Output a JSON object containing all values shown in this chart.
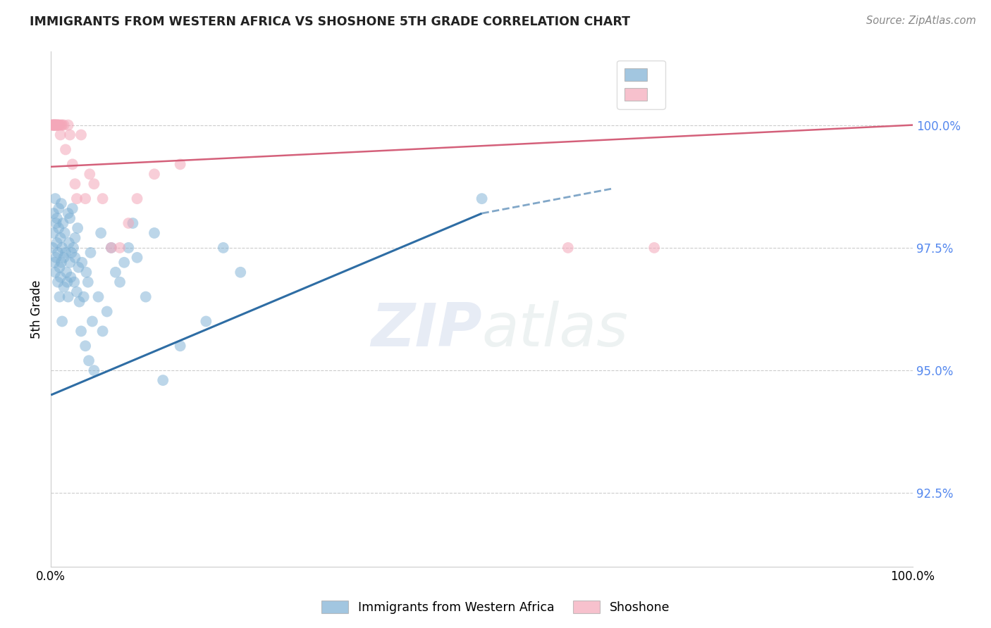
{
  "title": "IMMIGRANTS FROM WESTERN AFRICA VS SHOSHONE 5TH GRADE CORRELATION CHART",
  "source": "Source: ZipAtlas.com",
  "ylabel": "5th Grade",
  "xlim": [
    0,
    100.0
  ],
  "ylim": [
    91.0,
    101.5
  ],
  "yticks": [
    92.5,
    95.0,
    97.5,
    100.0
  ],
  "ytick_labels": [
    "92.5%",
    "95.0%",
    "97.5%",
    "100.0%"
  ],
  "xticks": [
    0.0,
    20.0,
    40.0,
    60.0,
    80.0,
    100.0
  ],
  "xtick_labels": [
    "0.0%",
    "",
    "",
    "",
    "",
    "100.0%"
  ],
  "blue_color": "#7BAFD4",
  "pink_color": "#F4A7B9",
  "trend_blue_color": "#2E6DA4",
  "trend_pink_color": "#D4607A",
  "watermark_zip": "ZIP",
  "watermark_atlas": "atlas",
  "blue_scatter_x": [
    0.2,
    0.3,
    0.3,
    0.4,
    0.5,
    0.5,
    0.6,
    0.6,
    0.7,
    0.7,
    0.8,
    0.8,
    0.9,
    0.9,
    1.0,
    1.0,
    1.1,
    1.1,
    1.2,
    1.2,
    1.3,
    1.3,
    1.4,
    1.5,
    1.5,
    1.6,
    1.7,
    1.8,
    1.9,
    2.0,
    2.0,
    2.1,
    2.2,
    2.2,
    2.3,
    2.4,
    2.5,
    2.6,
    2.7,
    2.8,
    2.8,
    3.0,
    3.1,
    3.2,
    3.3,
    3.5,
    3.6,
    3.8,
    4.0,
    4.1,
    4.3,
    4.4,
    4.6,
    4.8,
    5.0,
    5.5,
    5.8,
    6.0,
    6.5,
    7.0,
    7.5,
    8.0,
    8.5,
    9.0,
    9.5,
    10.0,
    11.0,
    12.0,
    13.0,
    15.0,
    18.0,
    20.0,
    22.0,
    50.0
  ],
  "blue_scatter_y": [
    97.5,
    97.8,
    98.2,
    97.2,
    97.0,
    98.5,
    97.3,
    98.0,
    97.6,
    98.1,
    96.8,
    97.4,
    97.9,
    98.3,
    96.5,
    97.1,
    97.7,
    96.9,
    97.2,
    98.4,
    96.0,
    97.5,
    98.0,
    97.3,
    96.7,
    97.8,
    97.4,
    97.0,
    96.8,
    98.2,
    96.5,
    97.6,
    97.2,
    98.1,
    96.9,
    97.4,
    98.3,
    97.5,
    96.8,
    97.7,
    97.3,
    96.6,
    97.9,
    97.1,
    96.4,
    95.8,
    97.2,
    96.5,
    95.5,
    97.0,
    96.8,
    95.2,
    97.4,
    96.0,
    95.0,
    96.5,
    97.8,
    95.8,
    96.2,
    97.5,
    97.0,
    96.8,
    97.2,
    97.5,
    98.0,
    97.3,
    96.5,
    97.8,
    94.8,
    95.5,
    96.0,
    97.5,
    97.0,
    98.5
  ],
  "pink_scatter_x": [
    0.1,
    0.2,
    0.2,
    0.3,
    0.3,
    0.4,
    0.4,
    0.5,
    0.5,
    0.6,
    0.6,
    0.7,
    0.8,
    0.8,
    0.9,
    1.0,
    1.1,
    1.2,
    1.3,
    1.5,
    1.7,
    2.0,
    2.2,
    2.5,
    2.8,
    3.0,
    3.5,
    4.0,
    4.5,
    5.0,
    6.0,
    7.0,
    8.0,
    9.0,
    10.0,
    12.0,
    15.0,
    60.0,
    70.0
  ],
  "pink_scatter_y": [
    100.0,
    100.0,
    100.0,
    100.0,
    100.0,
    100.0,
    100.0,
    100.0,
    100.0,
    100.0,
    100.0,
    100.0,
    100.0,
    100.0,
    100.0,
    100.0,
    99.8,
    100.0,
    100.0,
    100.0,
    99.5,
    100.0,
    99.8,
    99.2,
    98.8,
    98.5,
    99.8,
    98.5,
    99.0,
    98.8,
    98.5,
    97.5,
    97.5,
    98.0,
    98.5,
    99.0,
    99.2,
    97.5,
    97.5
  ],
  "blue_trend_x": [
    0.0,
    50.0
  ],
  "blue_trend_y": [
    94.5,
    98.2
  ],
  "pink_trend_x": [
    0.0,
    100.0
  ],
  "pink_trend_y": [
    99.15,
    100.0
  ],
  "background_color": "#ffffff",
  "grid_color": "#cccccc"
}
